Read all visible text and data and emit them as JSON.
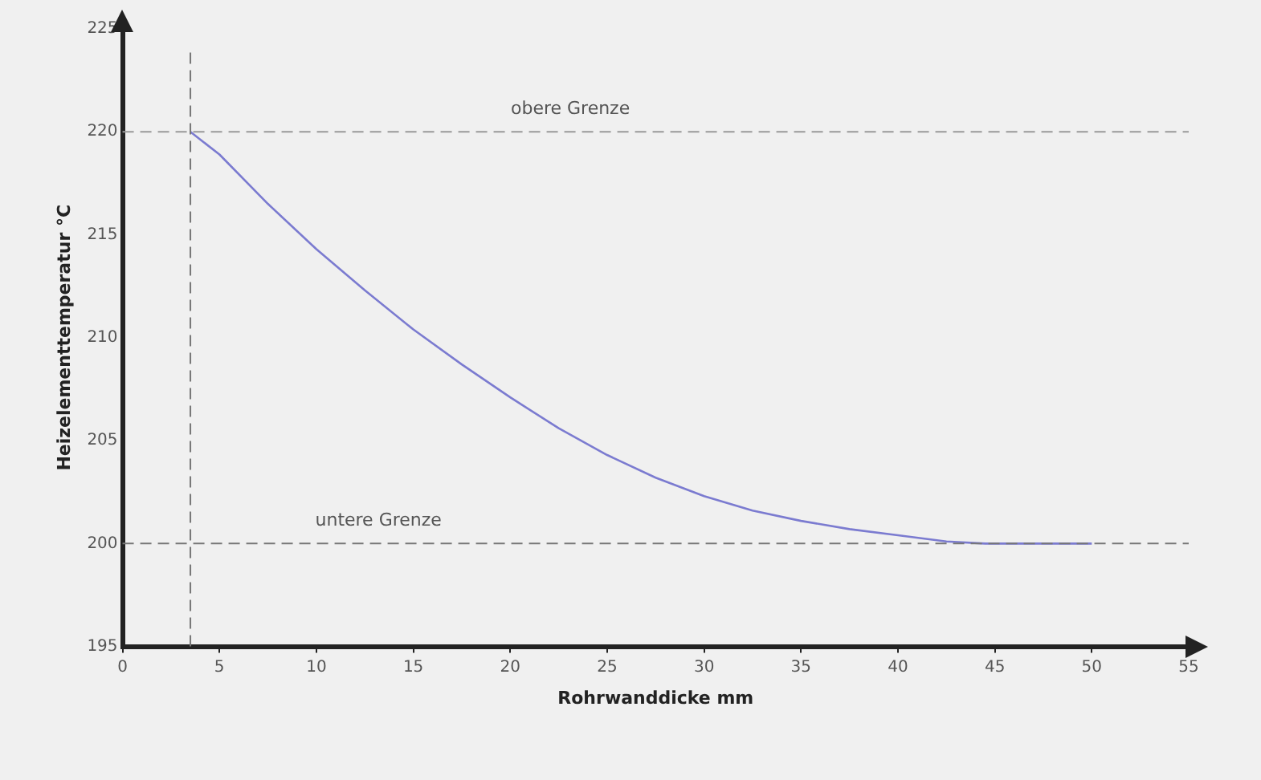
{
  "chart_data": {
    "type": "line",
    "xlabel": "Rohrwanddicke mm",
    "ylabel": "Heizelementtemperatur °C",
    "x": [
      3.5,
      5,
      7.5,
      10,
      12.5,
      15,
      17.5,
      20,
      22.5,
      25,
      27.5,
      30,
      32.5,
      35,
      37.5,
      40,
      42.5,
      44.5,
      50
    ],
    "series": [
      {
        "color": "#7b7bd0",
        "values": [
          220,
          218.9,
          216.5,
          214.3,
          212.3,
          210.4,
          208.7,
          207.1,
          205.6,
          204.3,
          203.2,
          202.3,
          201.6,
          201.1,
          200.7,
          200.4,
          200.1,
          200,
          200
        ]
      }
    ],
    "xlim": [
      0,
      55
    ],
    "xticks": [
      0,
      5,
      10,
      15,
      20,
      25,
      30,
      35,
      40,
      45,
      50,
      55
    ],
    "ylim": [
      195,
      225
    ],
    "yticks": [
      195,
      200,
      205,
      210,
      215,
      220,
      225
    ],
    "ref_lines": [
      {
        "axis": "y",
        "value": 220,
        "label": "obere Grenze",
        "color": "#999999",
        "line_style": "dashed"
      },
      {
        "axis": "y",
        "value": 200,
        "label": "untere Grenze",
        "color": "#777777",
        "line_style": "dashed"
      },
      {
        "axis": "x",
        "value": 3.5,
        "color": "#777777",
        "line_style": "dashed"
      }
    ],
    "grid": false,
    "legend": false,
    "marker": "none",
    "line_style": "solid"
  }
}
